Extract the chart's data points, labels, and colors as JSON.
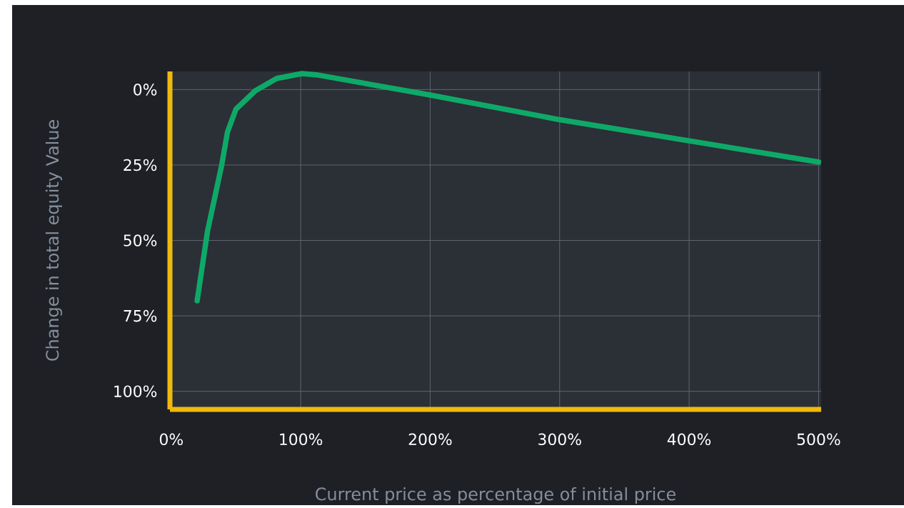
{
  "chart_data": {
    "type": "line",
    "xlabel": "Current price as percentage of initial price",
    "ylabel": "Change in total equity Value",
    "xlim": [
      -1,
      502
    ],
    "ylim": [
      106,
      -6
    ],
    "xticks": [
      {
        "value": 0,
        "label": "0%"
      },
      {
        "value": 100,
        "label": "100%"
      },
      {
        "value": 200,
        "label": "200%"
      },
      {
        "value": 300,
        "label": "300%"
      },
      {
        "value": 400,
        "label": "400%"
      },
      {
        "value": 500,
        "label": "500%"
      }
    ],
    "yticks": [
      {
        "value": 0,
        "label": "0%"
      },
      {
        "value": 25,
        "label": "25%"
      },
      {
        "value": 50,
        "label": "50%"
      },
      {
        "value": 75,
        "label": "75%"
      },
      {
        "value": 100,
        "label": "100%"
      }
    ],
    "grid": true,
    "marker": "none",
    "line_style": "solid",
    "series": [
      {
        "color": "#0ea968",
        "x": [
          20,
          28,
          39,
          43.5,
          50,
          65,
          81.5,
          101,
          112,
          200,
          300,
          400,
          500
        ],
        "values": [
          70,
          47,
          25,
          14,
          6.5,
          0.4,
          -3.7,
          -5.3,
          -4.9,
          1.8,
          10,
          17,
          24
        ]
      }
    ]
  }
}
